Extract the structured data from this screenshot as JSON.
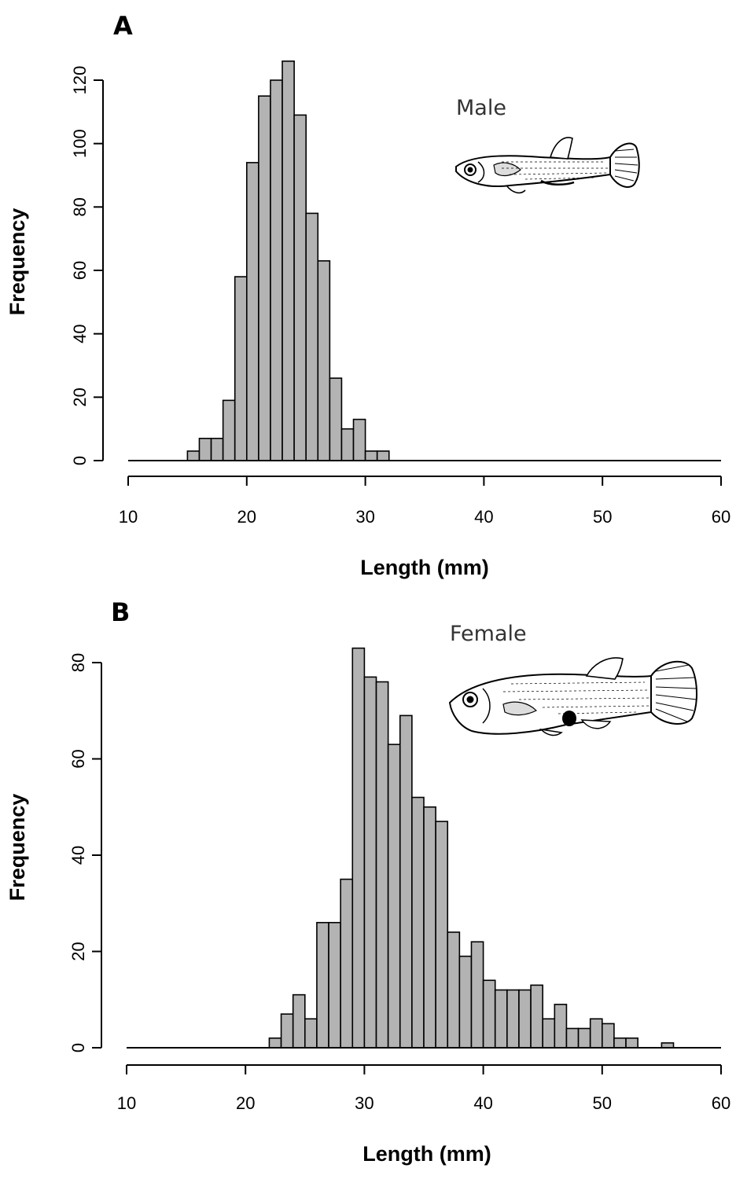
{
  "chart_data": [
    {
      "type": "bar",
      "panel": "A",
      "sex_label": "Male",
      "xlabel": "Length (mm)",
      "ylabel": "Frequency",
      "xlim": [
        10,
        60
      ],
      "ylim": [
        0,
        125
      ],
      "x_ticks": [
        "10",
        "20",
        "30",
        "40",
        "50",
        "60"
      ],
      "y_ticks": [
        "0",
        "20",
        "40",
        "60",
        "80",
        "100",
        "120"
      ],
      "bin_width": 1,
      "bins_start": [
        15,
        16,
        17,
        18,
        19,
        20,
        21,
        22,
        23,
        24,
        25,
        26,
        27,
        28,
        29,
        30,
        31
      ],
      "values": [
        3,
        7,
        7,
        19,
        58,
        94,
        115,
        120,
        126,
        109,
        78,
        63,
        26,
        10,
        13,
        3,
        3
      ]
    },
    {
      "type": "bar",
      "panel": "B",
      "sex_label": "Female",
      "xlabel": "Length (mm)",
      "ylabel": "Frequency",
      "xlim": [
        10,
        60
      ],
      "ylim": [
        0,
        82
      ],
      "x_ticks": [
        "10",
        "20",
        "30",
        "40",
        "50",
        "60"
      ],
      "y_ticks": [
        "0",
        "20",
        "40",
        "60",
        "80"
      ],
      "bin_width": 1,
      "bins_start": [
        22,
        23,
        24,
        25,
        26,
        27,
        28,
        29,
        30,
        31,
        32,
        33,
        34,
        35,
        36,
        37,
        38,
        39,
        40,
        41,
        42,
        43,
        44,
        45,
        46,
        47,
        48,
        49,
        50,
        51,
        52,
        53,
        54,
        55
      ],
      "values": [
        2,
        7,
        11,
        6,
        26,
        26,
        35,
        83,
        77,
        76,
        63,
        69,
        52,
        50,
        47,
        24,
        19,
        22,
        14,
        12,
        12,
        12,
        13,
        6,
        9,
        4,
        4,
        6,
        5,
        2,
        2,
        0,
        0,
        1
      ]
    }
  ]
}
